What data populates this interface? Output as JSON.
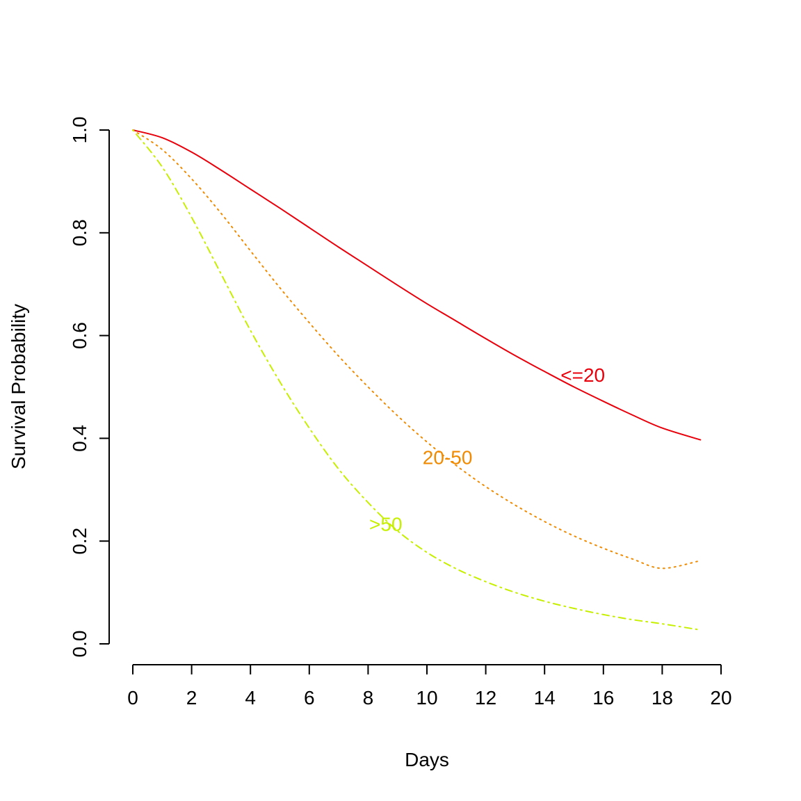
{
  "chart_data": {
    "type": "line",
    "title": "",
    "xlabel": "Days",
    "ylabel": "Survival Probability",
    "xlim": [
      0,
      20
    ],
    "ylim": [
      0,
      1
    ],
    "x_ticks": [
      "0",
      "2",
      "4",
      "6",
      "8",
      "10",
      "12",
      "14",
      "16",
      "18",
      "20"
    ],
    "y_ticks": [
      "0.0",
      "0.2",
      "0.4",
      "0.6",
      "0.8",
      "1.0"
    ],
    "grid": false,
    "legend": "none",
    "x": [
      0,
      1,
      2,
      3,
      4,
      5,
      6,
      7,
      8,
      9,
      10,
      11,
      12,
      13,
      14,
      15,
      16,
      17,
      18,
      19.3
    ],
    "series": [
      {
        "name": "<=20",
        "color": "#e8000b",
        "line_style": "solid",
        "values": [
          1.0,
          0.985,
          0.957,
          0.922,
          0.885,
          0.848,
          0.81,
          0.772,
          0.735,
          0.698,
          0.662,
          0.628,
          0.594,
          0.561,
          0.53,
          0.5,
          0.472,
          0.445,
          0.42,
          0.397
        ],
        "label_at": [
          15.3,
          0.52
        ]
      },
      {
        "name": "20-50",
        "color": "#f08a00",
        "line_style": "dotted",
        "values": [
          1.0,
          0.962,
          0.905,
          0.838,
          0.765,
          0.693,
          0.625,
          0.56,
          0.5,
          0.444,
          0.393,
          0.347,
          0.306,
          0.27,
          0.238,
          0.21,
          0.186,
          0.165,
          0.147,
          0.162
        ],
        "label_at": [
          10.7,
          0.36
        ]
      },
      {
        "name": ">50",
        "color": "#c6ef00",
        "line_style": "dashdot",
        "values": [
          1.0,
          0.928,
          0.83,
          0.72,
          0.61,
          0.51,
          0.42,
          0.34,
          0.275,
          0.22,
          0.178,
          0.146,
          0.121,
          0.1,
          0.083,
          0.069,
          0.057,
          0.047,
          0.039,
          0.027
        ],
        "label_at": [
          8.6,
          0.23
        ]
      }
    ]
  }
}
